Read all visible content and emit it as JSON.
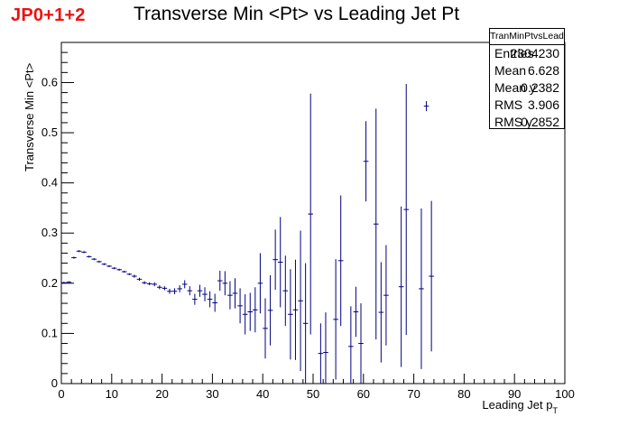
{
  "tag": "JP0+1+2",
  "title": "Transverse Min <Pt> vs Leading Jet Pt",
  "colors": {
    "markers": "#00007f",
    "tag": "#ee1111",
    "axes": "#000000"
  },
  "stats": {
    "name": "TranMinPtvsLeadJetPt",
    "rows": [
      {
        "key": "Entries",
        "value": "2304230"
      },
      {
        "key": "Mean",
        "value": "6.628"
      },
      {
        "key": "Mean y",
        "value": "0.2382"
      },
      {
        "key": "RMS",
        "value": "3.906"
      },
      {
        "key": "RMS y",
        "value": "0.2852"
      }
    ]
  },
  "chart_data": {
    "type": "scatter",
    "title": "Transverse Min <Pt> vs Leading Jet Pt",
    "xlabel": "Leading Jet p",
    "xlabel_subscript": "T",
    "ylabel": "Transverse Min <Pt>",
    "xlim": [
      0,
      100
    ],
    "ylim": [
      0,
      0.68
    ],
    "xticks": [
      "0",
      "10",
      "20",
      "30",
      "40",
      "50",
      "60",
      "70",
      "80",
      "90",
      "100"
    ],
    "yticks": [
      "0",
      "0.1",
      "0.2",
      "0.3",
      "0.4",
      "0.5",
      "0.6"
    ],
    "bin_width": 1,
    "grid": false,
    "legend": "none",
    "series": [
      {
        "x": [
          0.5,
          1.5,
          2.5,
          3.5,
          4.5,
          5.5,
          6.5,
          7.5,
          8.5,
          9.5,
          10.5,
          11.5,
          12.5,
          13.5,
          14.5,
          15.5,
          16.5,
          17.5,
          18.5,
          19.5,
          20.5,
          21.5,
          22.5,
          23.5,
          24.5,
          25.5,
          26.5,
          27.5,
          28.5,
          29.5,
          30.5,
          31.5,
          32.5,
          33.5,
          34.5,
          35.5,
          36.5,
          37.5,
          38.5,
          39.5,
          40.5,
          41.5,
          42.5,
          43.5,
          44.5,
          45.5,
          46.5,
          47.5,
          48.5,
          49.5,
          51.5,
          52.5,
          54.5,
          55.5,
          57.5,
          58.5,
          59.5,
          60.5,
          62.5,
          63.5,
          64.5,
          67.5,
          68.5,
          71.5,
          72.5,
          73.5
        ],
        "y": [
          0.201,
          0.202,
          0.251,
          0.264,
          0.262,
          0.253,
          0.248,
          0.243,
          0.238,
          0.234,
          0.23,
          0.227,
          0.223,
          0.218,
          0.214,
          0.208,
          0.201,
          0.199,
          0.198,
          0.192,
          0.19,
          0.184,
          0.184,
          0.189,
          0.198,
          0.185,
          0.168,
          0.185,
          0.178,
          0.168,
          0.161,
          0.205,
          0.2,
          0.176,
          0.18,
          0.155,
          0.138,
          0.143,
          0.147,
          0.2,
          0.11,
          0.146,
          0.247,
          0.242,
          0.185,
          0.138,
          0.147,
          0.165,
          0.12,
          0.338,
          0.06,
          0.062,
          0.128,
          0.245,
          0.074,
          0.143,
          0.08,
          0.443,
          0.318,
          0.142,
          0.176,
          0.193,
          0.347,
          0.189,
          0.553,
          0.214
        ],
        "err": [
          0.002,
          0.002,
          0.002,
          0.002,
          0.002,
          0.002,
          0.002,
          0.002,
          0.002,
          0.002,
          0.002,
          0.002,
          0.002,
          0.002,
          0.003,
          0.003,
          0.003,
          0.003,
          0.004,
          0.004,
          0.004,
          0.005,
          0.006,
          0.007,
          0.008,
          0.009,
          0.011,
          0.012,
          0.014,
          0.016,
          0.018,
          0.02,
          0.024,
          0.028,
          0.03,
          0.035,
          0.04,
          0.038,
          0.045,
          0.06,
          0.06,
          0.07,
          0.06,
          0.09,
          0.07,
          0.09,
          0.1,
          0.14,
          0.12,
          0.24,
          0.06,
          0.08,
          0.12,
          0.13,
          0.08,
          0.05,
          0.08,
          0.08,
          0.23,
          0.1,
          0.1,
          0.16,
          0.25,
          0.16,
          0.01,
          0.15
        ]
      }
    ]
  }
}
